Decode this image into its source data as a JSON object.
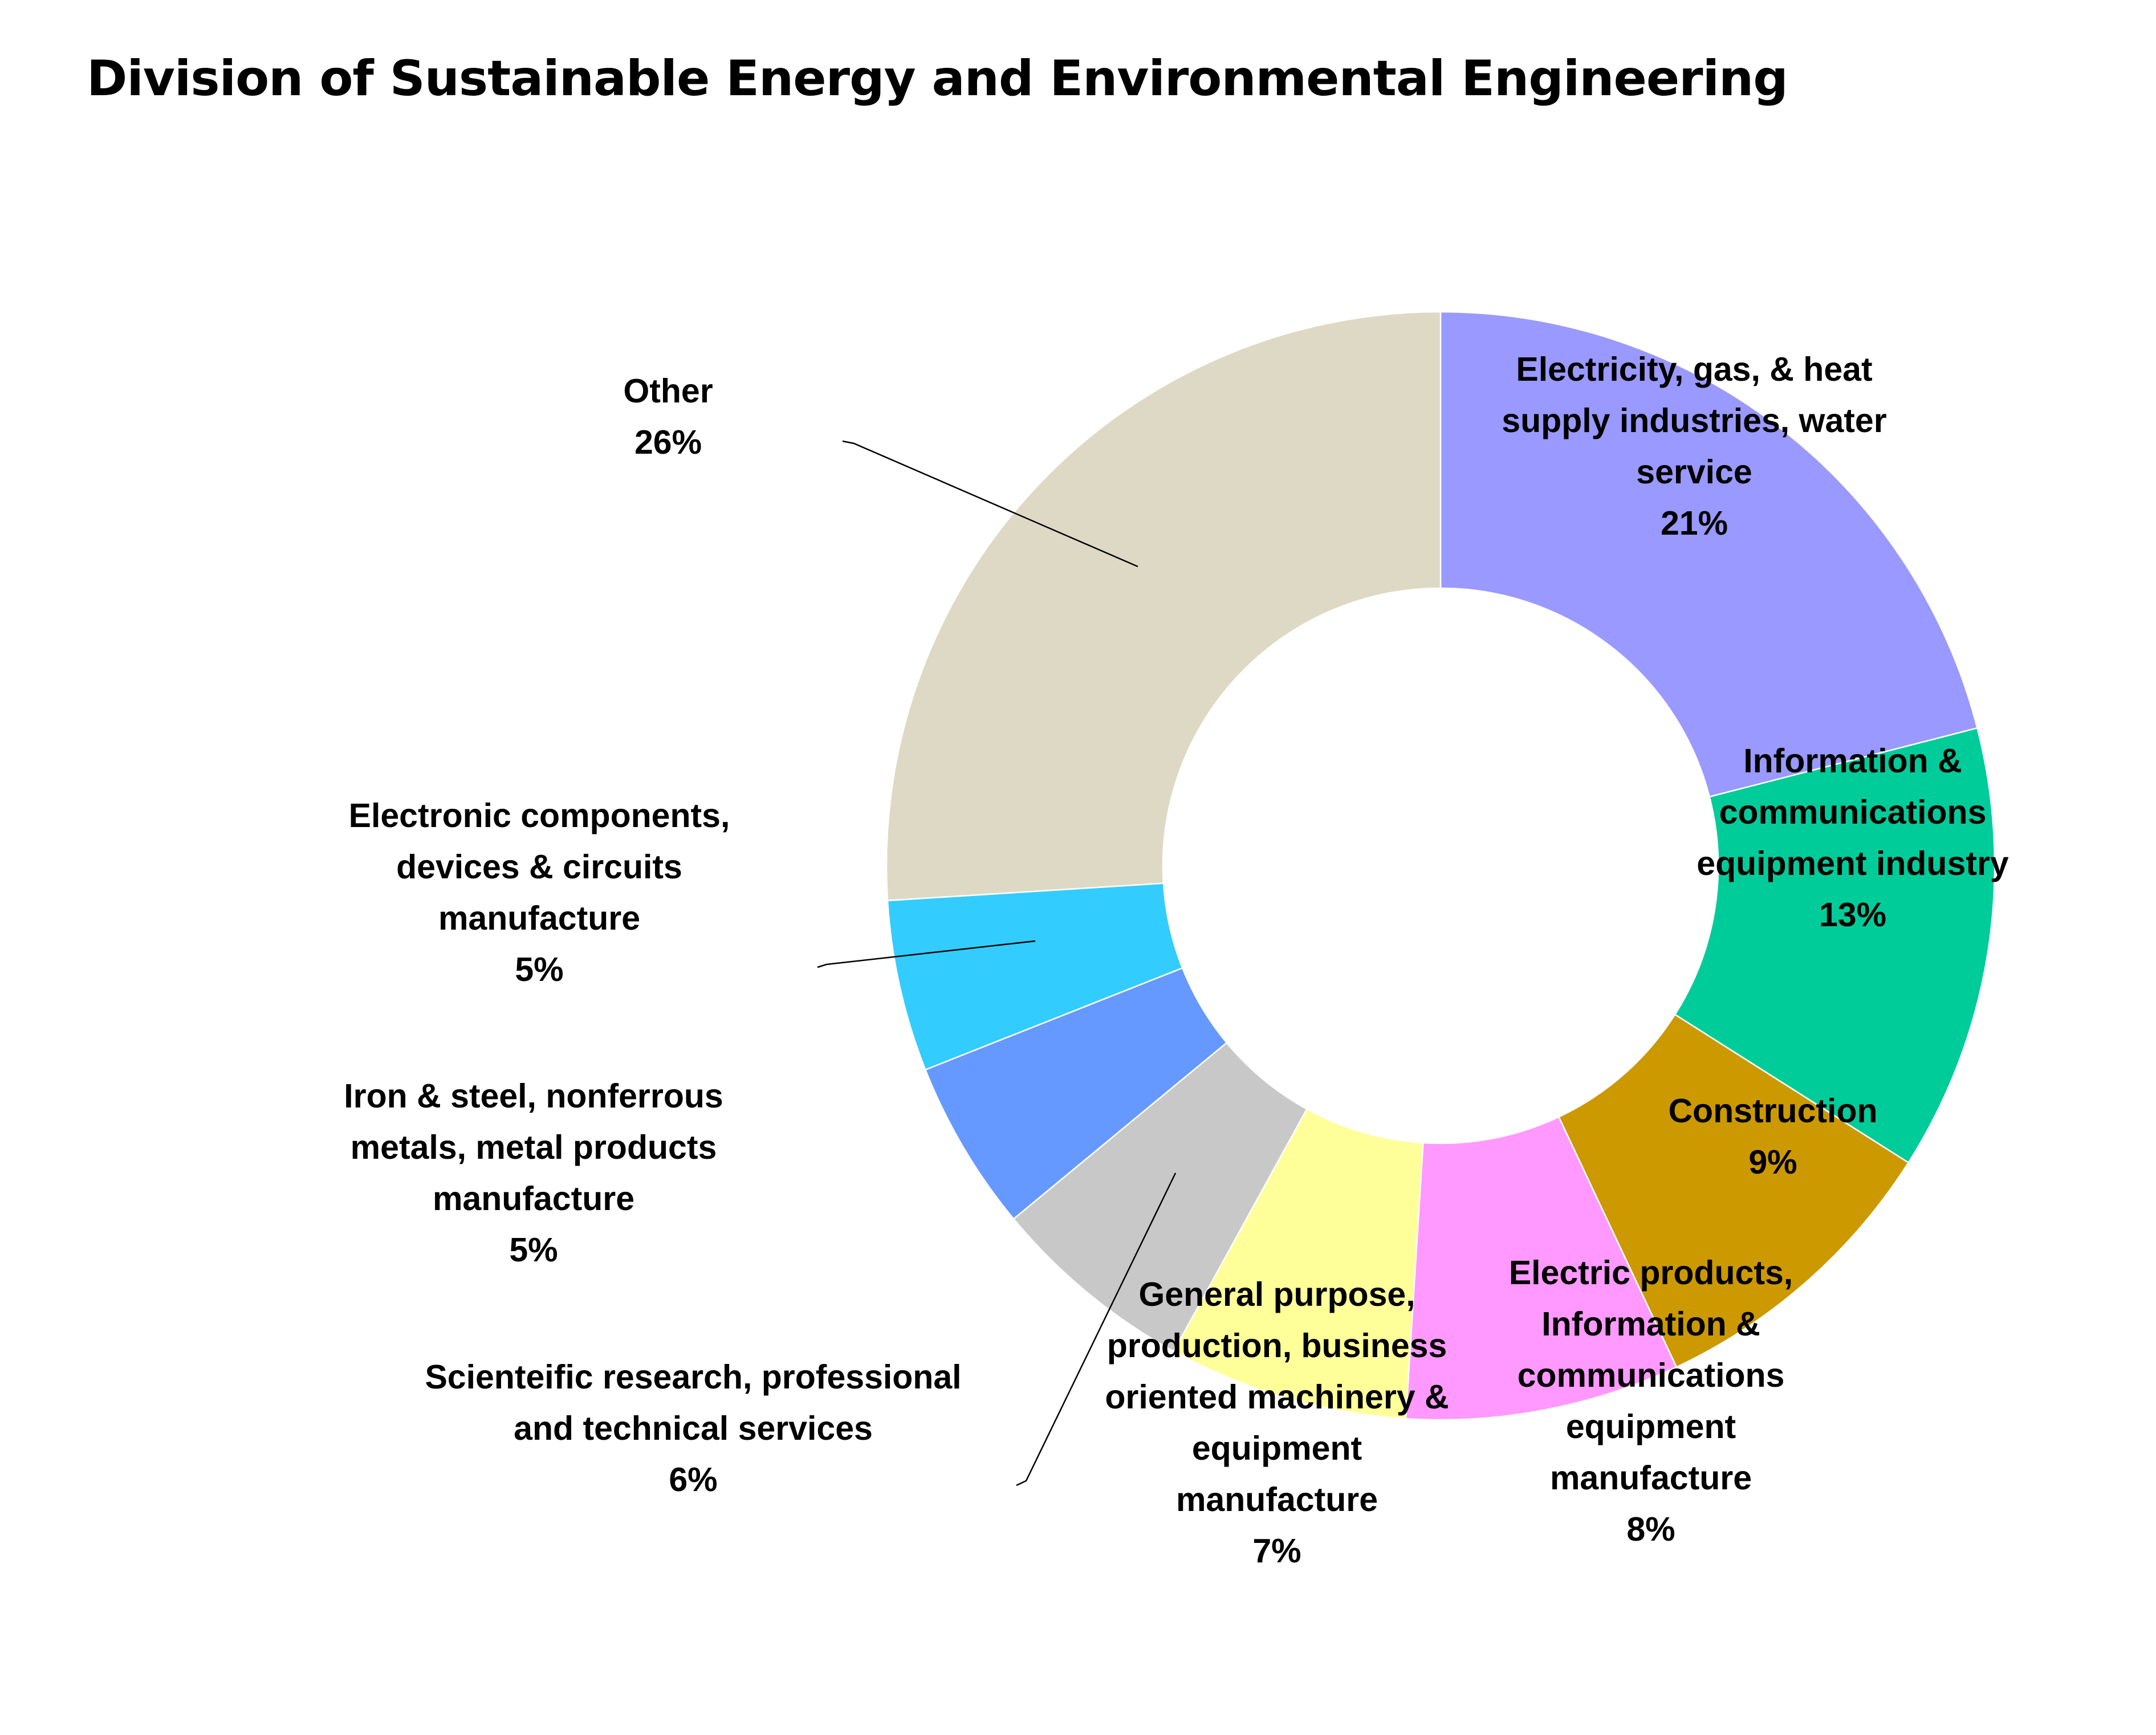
{
  "chart_data": {
    "type": "pie",
    "style": "donut",
    "title": "Division of Sustainable Energy and Environmental Engineering",
    "legend": "none (data labels on chart)",
    "slices": [
      {
        "label": "Electricity, gas, & heat supply industries, water service",
        "label_lines": [
          "Electricity, gas, & heat",
          "supply industries, water",
          "service"
        ],
        "percent_text": "21%",
        "value": 21,
        "color": "#9999ff"
      },
      {
        "label": "Information & communications equipment industry",
        "label_lines": [
          "Information &",
          "communications",
          "equipment industry"
        ],
        "percent_text": "13%",
        "value": 13,
        "color": "#00cc99"
      },
      {
        "label": "Construction",
        "label_lines": [
          "Construction"
        ],
        "percent_text": "9%",
        "value": 9,
        "color": "#cc9900"
      },
      {
        "label": "Electric products, Information & communications equipment manufacture",
        "label_lines": [
          "Electric products,",
          "Information &",
          "communications",
          "equipment",
          "manufacture"
        ],
        "percent_text": "8%",
        "value": 8,
        "color": "#ff99ff"
      },
      {
        "label": "General purpose, production, business oriented machinery & equipment manufacture",
        "label_lines": [
          "General purpose,",
          "production, business",
          "oriented machinery &",
          "equipment",
          "manufacture"
        ],
        "percent_text": "7%",
        "value": 7,
        "color": "#ffff99"
      },
      {
        "label": "Scienteific research, professional and technical services",
        "label_lines": [
          "Scienteific research, professional",
          "and technical services"
        ],
        "percent_text": "6%",
        "value": 6,
        "color": "#c8c8c8"
      },
      {
        "label": "Iron & steel, nonferrous metals, metal products manufacture",
        "label_lines": [
          "Iron & steel, nonferrous",
          "metals, metal products",
          "manufacture"
        ],
        "percent_text": "5%",
        "value": 5,
        "color": "#6699ff"
      },
      {
        "label": "Electronic components, devices & circuits manufacture",
        "label_lines": [
          "Electronic components,",
          "devices & circuits",
          "manufacture"
        ],
        "percent_text": "5%",
        "value": 5,
        "color": "#33ccff"
      },
      {
        "label": "Other",
        "label_lines": [
          "Other"
        ],
        "percent_text": "26%",
        "value": 26,
        "color": "#ddd9c4"
      }
    ]
  }
}
